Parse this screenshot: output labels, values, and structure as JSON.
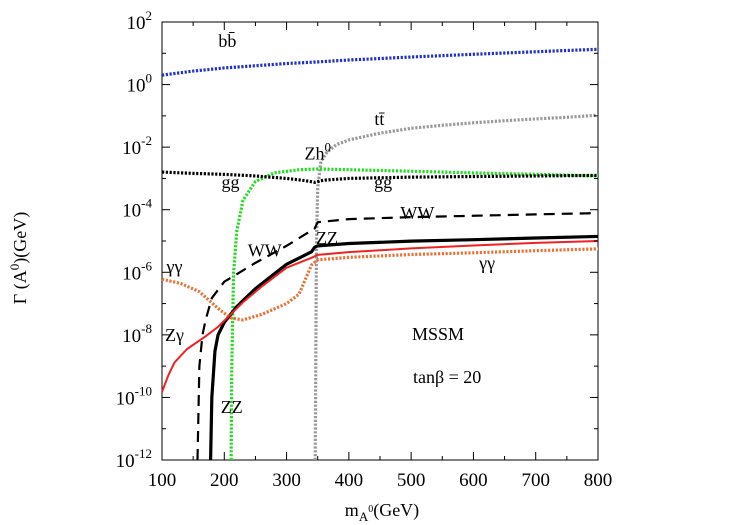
{
  "chart_data": {
    "type": "line",
    "y_scale": "log",
    "xlim": [
      100,
      800
    ],
    "ylim_exponents": [
      -12,
      2
    ],
    "x_ticks": [
      "100",
      "200",
      "300",
      "400",
      "500",
      "600",
      "700",
      "800"
    ],
    "y_ticks": [
      {
        "base": "10",
        "exp": "-12",
        "value": -12
      },
      {
        "base": "10",
        "exp": "-10",
        "value": -10
      },
      {
        "base": "10",
        "exp": "-8",
        "value": -8
      },
      {
        "base": "10",
        "exp": "-6",
        "value": -6
      },
      {
        "base": "10",
        "exp": "-4",
        "value": -4
      },
      {
        "base": "10",
        "exp": "-2",
        "value": -2
      },
      {
        "base": "10",
        "exp": "0",
        "value": 0
      },
      {
        "base": "10",
        "exp": "2",
        "value": 2
      }
    ],
    "xlabel": {
      "main": "m",
      "sub": "A",
      "subsup": "0",
      "unit": "(GeV)"
    },
    "ylabel": {
      "main": "Γ (A",
      "sup": "0",
      "unit": ")(GeV)"
    },
    "text_annotations": {
      "model": "MSSM",
      "param": "tanβ = 20"
    },
    "series": [
      {
        "name": "bb̄",
        "color": "#1f2fd0",
        "style": "dotted",
        "x": [
          100,
          150,
          200,
          250,
          300,
          350,
          400,
          450,
          500,
          550,
          600,
          650,
          700,
          750,
          800
        ],
        "y": [
          2.0,
          2.7,
          3.4,
          4.0,
          4.7,
          5.3,
          6.1,
          6.8,
          7.6,
          8.4,
          9.3,
          10.2,
          11.2,
          12.3,
          13.4
        ]
      },
      {
        "name": "tt̄",
        "color": "#999999",
        "style": "dotted",
        "x": [
          346,
          348,
          350,
          355,
          365,
          380,
          400,
          450,
          500,
          550,
          600,
          650,
          700,
          750,
          800
        ],
        "y": [
          1e-12,
          1e-05,
          0.0005,
          0.0035,
          0.007,
          0.012,
          0.017,
          0.028,
          0.04,
          0.05,
          0.06,
          0.07,
          0.08,
          0.09,
          0.105
        ]
      },
      {
        "name": "Zh0",
        "color": "#22dd22",
        "style": "dotted",
        "x": [
          211,
          212,
          215,
          220,
          230,
          250,
          280,
          320,
          350,
          400,
          500,
          600,
          700,
          800
        ],
        "y": [
          1e-12,
          1e-09,
          1e-06,
          2e-05,
          0.0002,
          0.0008,
          0.0015,
          0.0019,
          0.002,
          0.0019,
          0.0017,
          0.0015,
          0.00135,
          0.0012
        ]
      },
      {
        "name": "gg",
        "color": "#000000",
        "style": "dotted",
        "x": [
          100,
          150,
          200,
          250,
          300,
          330,
          345,
          360,
          400,
          500,
          600,
          700,
          800
        ],
        "y": [
          0.0016,
          0.00145,
          0.00135,
          0.0012,
          0.001,
          0.00085,
          0.00075,
          0.00088,
          0.001,
          0.0011,
          0.00115,
          0.0012,
          0.00125
        ]
      },
      {
        "name": "WW",
        "color": "#000000",
        "style": "dashed",
        "x": [
          157,
          160,
          165,
          170,
          180,
          200,
          250,
          300,
          345,
          350,
          400,
          500,
          600,
          700,
          800
        ],
        "y": [
          1e-12,
          1e-09,
          1e-08,
          3e-08,
          1.5e-07,
          5e-07,
          2e-06,
          7e-06,
          2.5e-05,
          4e-05,
          5e-05,
          5.8e-05,
          6.4e-05,
          7.1e-05,
          7.8e-05
        ]
      },
      {
        "name": "ZZ",
        "color": "#000000",
        "style": "solid",
        "x": [
          178,
          180,
          185,
          190,
          200,
          220,
          250,
          300,
          340,
          345,
          350,
          400,
          500,
          600,
          700,
          800
        ],
        "y": [
          1e-12,
          1e-10,
          3e-09,
          1e-08,
          2.5e-08,
          8e-08,
          3e-07,
          1.8e-06,
          4.5e-06,
          6.3e-06,
          7e-06,
          8.3e-06,
          9.9e-06,
          1.1e-05,
          1.25e-05,
          1.4e-05
        ]
      },
      {
        "name": "γγ",
        "color": "#e8743a",
        "style": "dotted",
        "x": [
          100,
          130,
          160,
          190,
          210,
          230,
          260,
          300,
          320,
          340,
          350,
          400,
          500,
          600,
          700,
          800
        ],
        "y": [
          6e-07,
          4.4e-07,
          2.4e-07,
          7e-08,
          3.5e-08,
          3e-08,
          4.5e-08,
          1e-07,
          2e-07,
          1.7e-06,
          2.5e-06,
          3e-06,
          3.7e-06,
          4.2e-06,
          4.9e-06,
          5.6e-06
        ]
      },
      {
        "name": "Zγ",
        "color": "#ee2222",
        "style": "solid",
        "x": [
          100,
          110,
          120,
          140,
          170,
          190,
          210,
          230,
          260,
          300,
          340,
          350,
          400,
          500,
          600,
          700,
          800
        ],
        "y": [
          1.5e-10,
          5e-10,
          1.3e-09,
          3.5e-09,
          9e-09,
          1.8e-08,
          4.5e-08,
          1.1e-07,
          3.5e-07,
          1.4e-06,
          2.9e-06,
          3.6e-06,
          4.4e-06,
          5.8e-06,
          7.2e-06,
          8.7e-06,
          1e-05
        ]
      }
    ],
    "curve_labels": [
      {
        "series": "bb̄",
        "text": "bb̄",
        "at_x": 205,
        "at_logy": 1.2
      },
      {
        "series": "tt̄",
        "text": "tt̄",
        "at_x": 449,
        "at_logy": -1.3
      },
      {
        "series": "Zh0",
        "text": "Zh",
        "sup": "0",
        "at_x": 350,
        "at_logy": -2.4
      },
      {
        "series": "gg",
        "text": "gg",
        "at_x": 210,
        "at_logy": -3.3
      },
      {
        "series": "gg",
        "text": "gg",
        "at_x": 455,
        "at_logy": -3.3
      },
      {
        "series": "WW",
        "text": "WW",
        "at_x": 510,
        "at_logy": -4.3
      },
      {
        "series": "WW",
        "text": "WW",
        "at_x": 265,
        "at_logy": -5.5
      },
      {
        "series": "ZZ",
        "text": "ZZ",
        "at_x": 365,
        "at_logy": -5.1
      },
      {
        "series": "ZZ",
        "text": "ZZ",
        "at_x": 212,
        "at_logy": -10.5
      },
      {
        "series": "γγ",
        "text": "γγ",
        "at_x": 120,
        "at_logy": -6.0
      },
      {
        "series": "γγ",
        "text": "γγ",
        "at_x": 622,
        "at_logy": -5.9
      },
      {
        "series": "Zγ",
        "text": "Zγ",
        "at_x": 120,
        "at_logy": -8.2
      }
    ]
  }
}
